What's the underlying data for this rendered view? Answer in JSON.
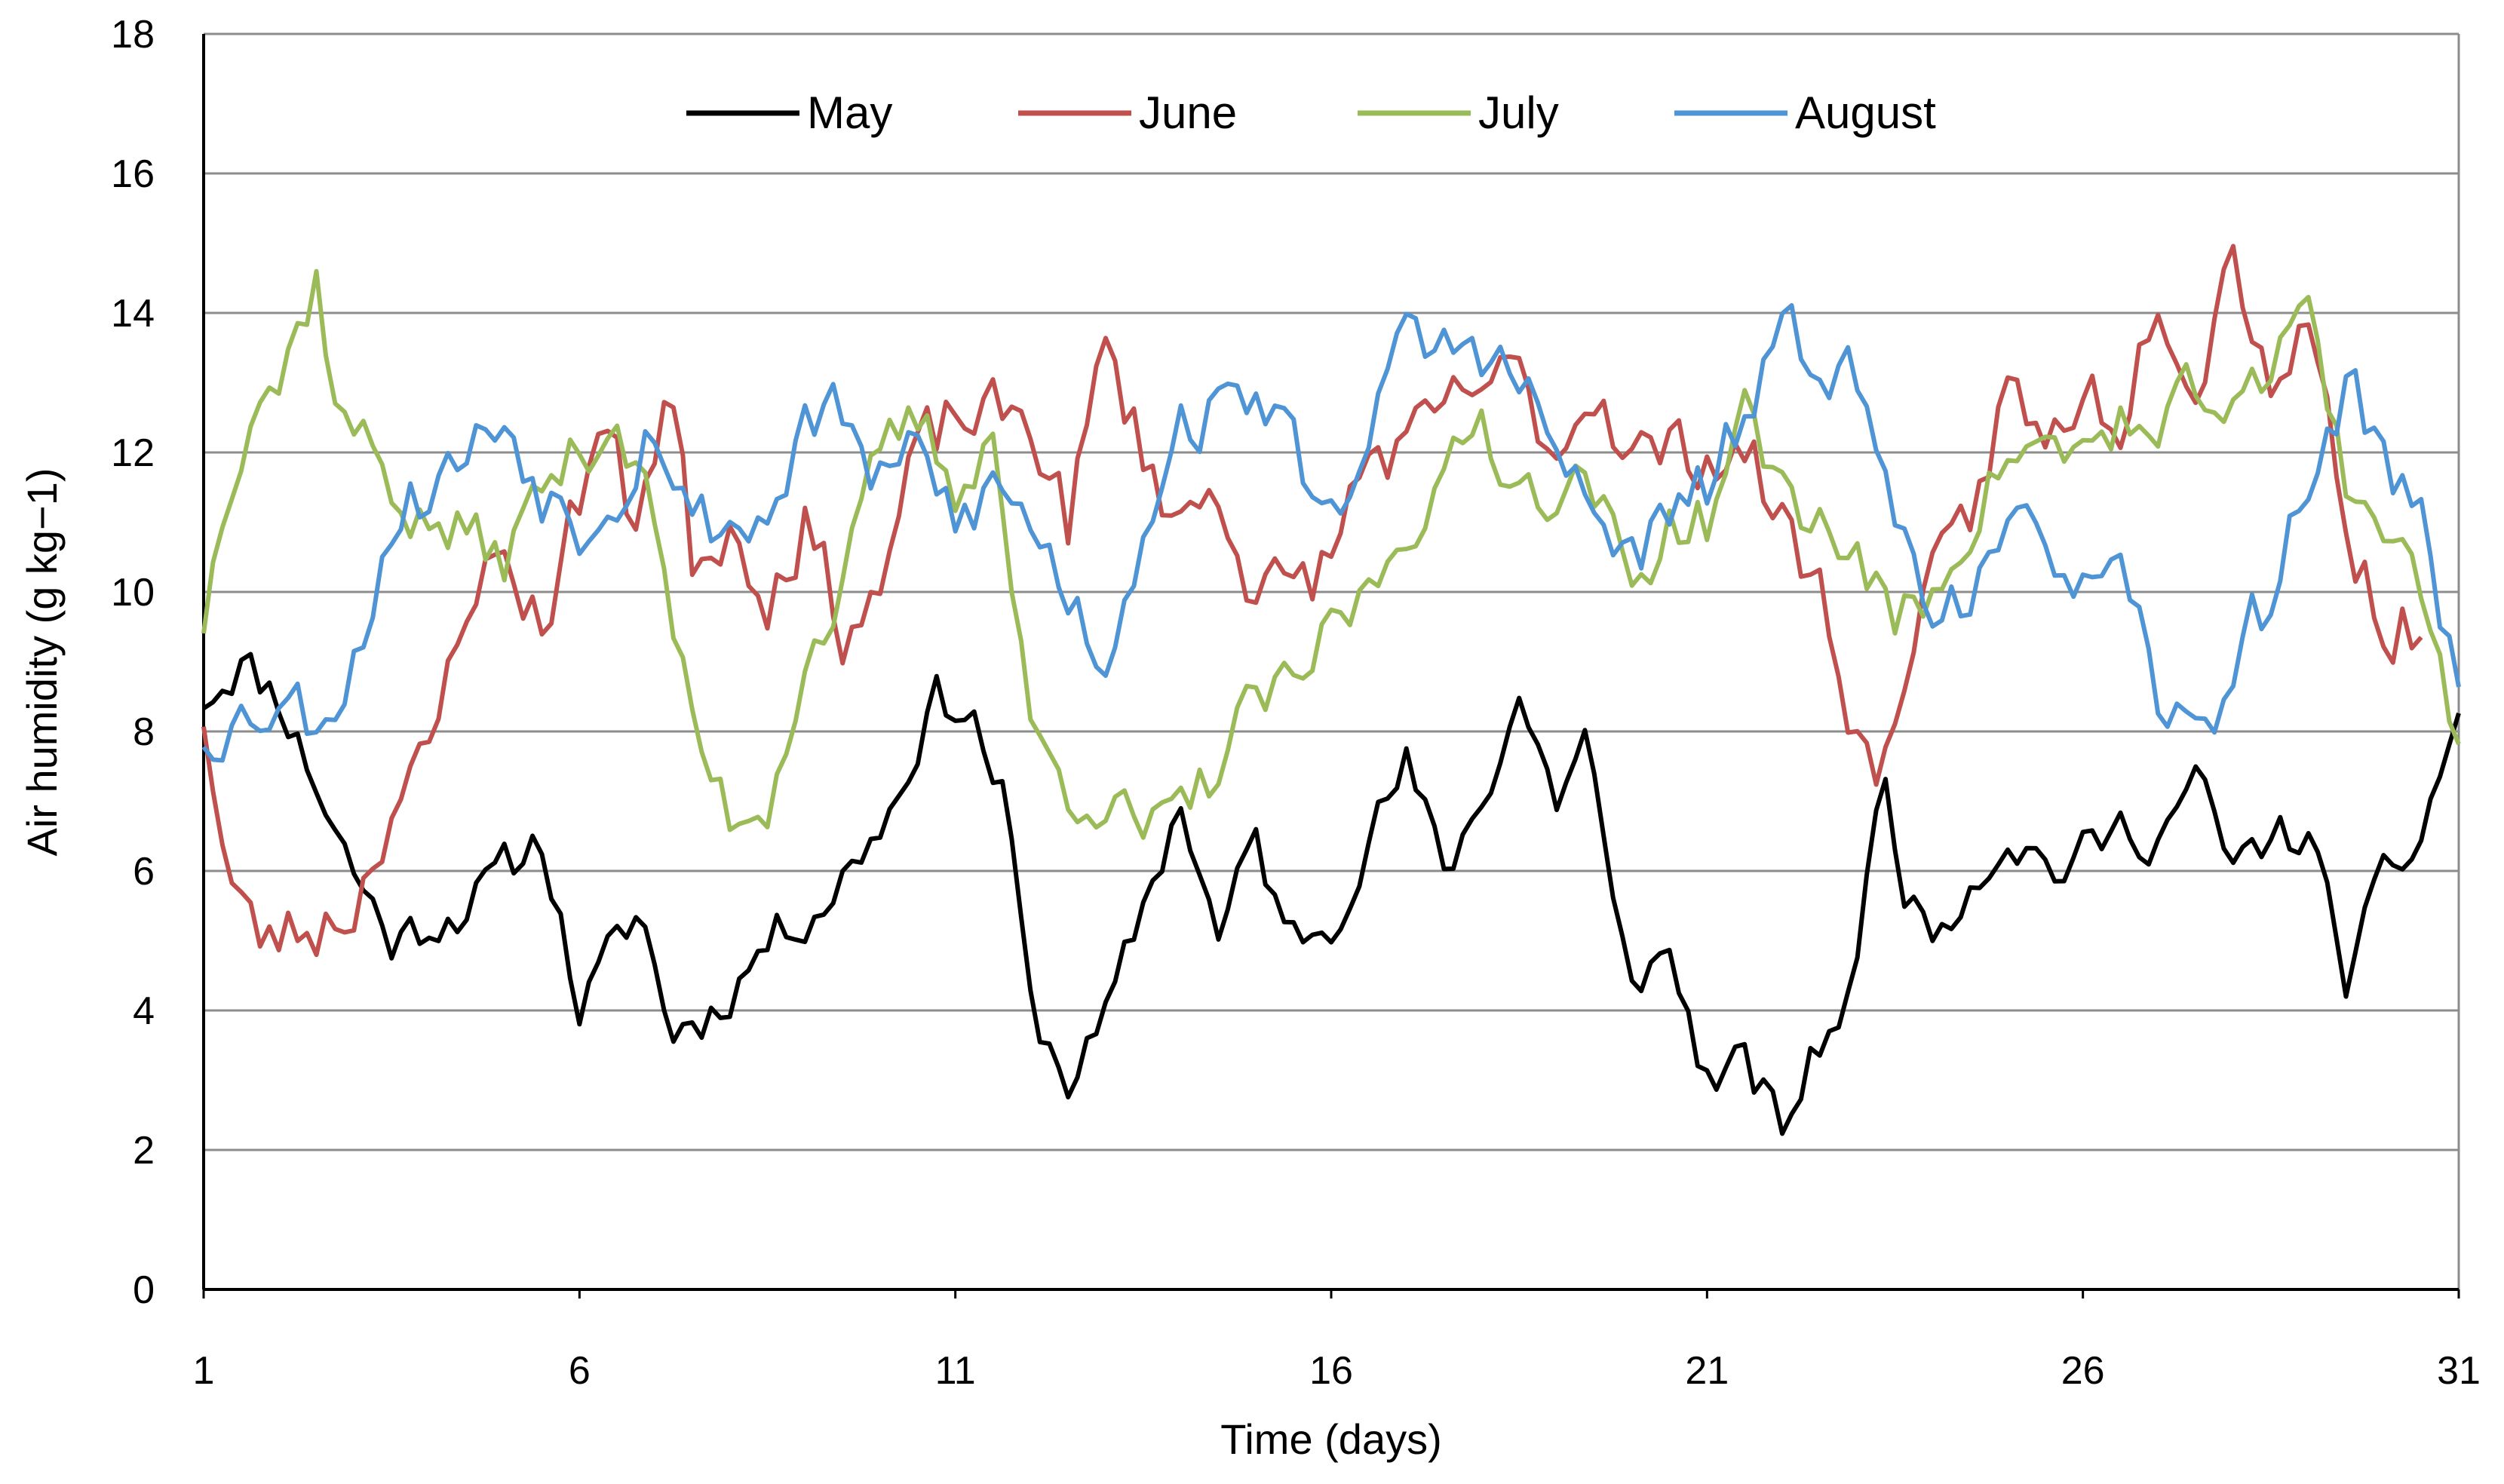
{
  "chart_data": {
    "type": "line",
    "title": "",
    "xlabel": "Time (days)",
    "ylabel": "Air humidity (g kg−1)",
    "xlim": [
      1,
      31
    ],
    "ylim": [
      0,
      18
    ],
    "x_ticks": [
      1,
      6,
      11,
      16,
      21,
      26,
      31
    ],
    "y_ticks": [
      0,
      2,
      4,
      6,
      8,
      10,
      12,
      14,
      16,
      18
    ],
    "grid": true,
    "legend_position": "top",
    "sampling": "one value every 3 hours (0.125 day), day 1 to day 31",
    "series": [
      {
        "name": "May",
        "color": "#000000",
        "keypoints": [
          [
            1,
            8.5
          ],
          [
            1.5,
            9
          ],
          [
            2,
            8.5
          ],
          [
            3,
            6
          ],
          [
            3.5,
            5
          ],
          [
            4.5,
            5.5
          ],
          [
            5.5,
            6.5
          ],
          [
            6,
            4
          ],
          [
            6.8,
            5.5
          ],
          [
            7.2,
            3.7
          ],
          [
            7.8,
            4
          ],
          [
            8.5,
            5
          ],
          [
            9.3,
            5.6
          ],
          [
            10.2,
            7
          ],
          [
            10.7,
            8.5
          ],
          [
            11.2,
            8.3
          ],
          [
            11.7,
            6.8
          ],
          [
            12,
            4
          ],
          [
            12.5,
            3
          ],
          [
            13,
            3.8
          ],
          [
            13.5,
            5.5
          ],
          [
            14,
            7
          ],
          [
            14.5,
            5
          ],
          [
            15,
            6.5
          ],
          [
            15.4,
            5
          ],
          [
            16,
            5.3
          ],
          [
            16.5,
            6.5
          ],
          [
            17,
            7.5
          ],
          [
            17.5,
            6
          ],
          [
            18,
            7
          ],
          [
            18.5,
            8.5
          ],
          [
            19,
            7
          ],
          [
            19.4,
            8
          ],
          [
            19.8,
            5
          ],
          [
            20,
            4.5
          ],
          [
            20.5,
            4.8
          ],
          [
            21,
            3
          ],
          [
            21.5,
            3.2
          ],
          [
            22,
            2.3
          ],
          [
            22.5,
            3.5
          ],
          [
            23,
            4.5
          ],
          [
            23.3,
            7.6
          ],
          [
            23.7,
            5.5
          ],
          [
            24,
            5.2
          ],
          [
            25,
            6.5
          ],
          [
            25.7,
            6
          ],
          [
            26.5,
            6.6
          ],
          [
            27,
            6.5
          ],
          [
            27.5,
            7.3
          ],
          [
            28,
            6
          ],
          [
            28.5,
            6.5
          ],
          [
            29,
            6.5
          ],
          [
            29.5,
            4.5
          ],
          [
            30,
            5.8
          ],
          [
            30.5,
            6.5
          ],
          [
            31,
            8.3
          ]
        ],
        "noise": 0.5,
        "seed": 11
      },
      {
        "name": "June",
        "color": "#c0504d",
        "keypoints": [
          [
            1,
            8.3
          ],
          [
            1.3,
            6
          ],
          [
            1.7,
            5
          ],
          [
            2.5,
            5.2
          ],
          [
            3,
            5.5
          ],
          [
            3.5,
            7
          ],
          [
            4,
            7.5
          ],
          [
            4.5,
            10
          ],
          [
            5,
            10.5
          ],
          [
            5.5,
            9.5
          ],
          [
            6.3,
            12.5
          ],
          [
            6.7,
            11
          ],
          [
            7.2,
            13
          ],
          [
            7.5,
            10.5
          ],
          [
            8,
            11
          ],
          [
            8.5,
            10
          ],
          [
            9,
            11
          ],
          [
            9.5,
            9.5
          ],
          [
            10,
            10
          ],
          [
            10.5,
            12
          ],
          [
            11,
            12.5
          ],
          [
            11.5,
            12.5
          ],
          [
            12,
            12.5
          ],
          [
            12.5,
            11
          ],
          [
            13,
            13.5
          ],
          [
            13.5,
            12
          ],
          [
            14,
            11
          ],
          [
            14.5,
            11.5
          ],
          [
            15,
            10
          ],
          [
            15.5,
            10
          ],
          [
            16,
            10.5
          ],
          [
            16.5,
            12
          ],
          [
            17,
            12
          ],
          [
            17.5,
            12.5
          ],
          [
            18,
            13
          ],
          [
            18.5,
            13
          ],
          [
            19,
            12
          ],
          [
            19.5,
            13
          ],
          [
            20,
            12
          ],
          [
            20.5,
            12
          ],
          [
            21,
            12
          ],
          [
            21.5,
            12
          ],
          [
            22,
            11
          ],
          [
            22.5,
            10
          ],
          [
            23,
            8
          ],
          [
            23.3,
            7
          ],
          [
            23.6,
            9
          ],
          [
            24,
            10
          ],
          [
            24.5,
            11
          ],
          [
            25,
            13
          ],
          [
            25.5,
            12
          ],
          [
            26,
            13
          ],
          [
            26.5,
            12.5
          ],
          [
            27,
            14.5
          ],
          [
            27.5,
            13
          ],
          [
            28,
            15
          ],
          [
            28.5,
            13
          ],
          [
            29,
            14
          ],
          [
            29.5,
            11
          ],
          [
            30,
            9.5
          ],
          [
            30.5,
            9.5
          ]
        ],
        "noise": 0.7,
        "seed": 23
      },
      {
        "name": "July",
        "color": "#9bbb59",
        "keypoints": [
          [
            1,
            9.6
          ],
          [
            1.3,
            11.5
          ],
          [
            1.7,
            13
          ],
          [
            2,
            13
          ],
          [
            2.5,
            14.5
          ],
          [
            2.8,
            12.5
          ],
          [
            3.3,
            12
          ],
          [
            3.8,
            11
          ],
          [
            4.5,
            10.8
          ],
          [
            5,
            10.5
          ],
          [
            5.5,
            11.5
          ],
          [
            6,
            12
          ],
          [
            6.5,
            12.5
          ],
          [
            7,
            11
          ],
          [
            7.5,
            8
          ],
          [
            8,
            6.8
          ],
          [
            8.5,
            7
          ],
          [
            9,
            9
          ],
          [
            9.5,
            10
          ],
          [
            10,
            12
          ],
          [
            10.5,
            12.5
          ],
          [
            11,
            11.5
          ],
          [
            11.5,
            12.3
          ],
          [
            12,
            8
          ],
          [
            12.5,
            7.2
          ],
          [
            13,
            7
          ],
          [
            13.5,
            6.5
          ],
          [
            14,
            6.8
          ],
          [
            14.5,
            7.5
          ],
          [
            15,
            8.5
          ],
          [
            15.5,
            8.5
          ],
          [
            16,
            9.5
          ],
          [
            16.5,
            10
          ],
          [
            17,
            11
          ],
          [
            17.5,
            11.5
          ],
          [
            18,
            12.5
          ],
          [
            18.5,
            11.5
          ],
          [
            19,
            11.5
          ],
          [
            19.5,
            11.5
          ],
          [
            20,
            10
          ],
          [
            20.5,
            11
          ],
          [
            21,
            11
          ],
          [
            21.5,
            12.5
          ],
          [
            22,
            11.5
          ],
          [
            22.5,
            11
          ],
          [
            23,
            10.5
          ],
          [
            23.5,
            9.5
          ],
          [
            24,
            10
          ],
          [
            24.5,
            11
          ],
          [
            25,
            12
          ],
          [
            25.5,
            12
          ],
          [
            26,
            12
          ],
          [
            26.5,
            12.5
          ],
          [
            27,
            12
          ],
          [
            27.5,
            13
          ],
          [
            28,
            12.5
          ],
          [
            28.5,
            13
          ],
          [
            29,
            14.5
          ],
          [
            29.5,
            11.5
          ],
          [
            30,
            11
          ],
          [
            30.5,
            10
          ],
          [
            31,
            7.8
          ]
        ],
        "noise": 0.6,
        "seed": 37
      },
      {
        "name": "August",
        "color": "#4f95d5",
        "keypoints": [
          [
            1,
            8
          ],
          [
            1.5,
            8.2
          ],
          [
            2,
            8.5
          ],
          [
            2.5,
            8.2
          ],
          [
            3,
            9
          ],
          [
            3.5,
            11
          ],
          [
            4,
            11.5
          ],
          [
            4.5,
            12
          ],
          [
            5,
            12.5
          ],
          [
            5.5,
            11.5
          ],
          [
            6,
            11
          ],
          [
            6.5,
            11.5
          ],
          [
            7,
            12.5
          ],
          [
            7.5,
            11
          ],
          [
            8,
            11
          ],
          [
            8.5,
            11
          ],
          [
            9,
            12.5
          ],
          [
            9.5,
            12.5
          ],
          [
            10,
            11.5
          ],
          [
            10.5,
            12
          ],
          [
            11,
            11
          ],
          [
            11.5,
            11.5
          ],
          [
            12,
            11
          ],
          [
            12.5,
            10
          ],
          [
            13,
            9
          ],
          [
            13.5,
            11
          ],
          [
            14,
            12.5
          ],
          [
            14.5,
            12.5
          ],
          [
            15,
            13
          ],
          [
            15.5,
            12
          ],
          [
            16,
            11
          ],
          [
            16.5,
            12.5
          ],
          [
            17,
            13.5
          ],
          [
            17.5,
            13.5
          ],
          [
            18,
            13.5
          ],
          [
            18.5,
            13
          ],
          [
            19,
            12
          ],
          [
            19.5,
            11
          ],
          [
            20,
            10.5
          ],
          [
            20.5,
            11
          ],
          [
            21,
            11.5
          ],
          [
            21.5,
            12.5
          ],
          [
            22,
            13.5
          ],
          [
            22.5,
            13.5
          ],
          [
            23,
            13
          ],
          [
            23.5,
            11
          ],
          [
            24,
            10
          ],
          [
            24.5,
            10
          ],
          [
            25,
            10.5
          ],
          [
            25.5,
            11
          ],
          [
            26,
            10
          ],
          [
            26.5,
            10
          ],
          [
            27,
            8.5
          ],
          [
            27.5,
            7.8
          ],
          [
            28,
            9
          ],
          [
            28.5,
            10
          ],
          [
            29,
            11.5
          ],
          [
            29.5,
            13
          ],
          [
            30,
            12
          ],
          [
            30.5,
            11
          ],
          [
            31,
            8.5
          ]
        ],
        "noise": 0.7,
        "seed": 53
      }
    ]
  }
}
